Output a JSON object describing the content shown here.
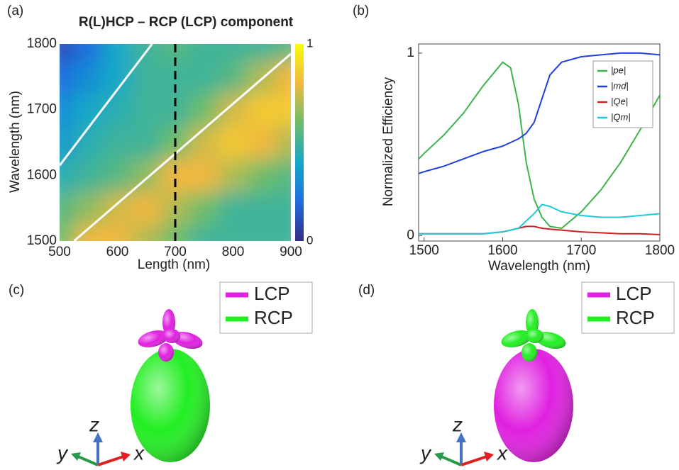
{
  "chart_data": [
    {
      "type": "heatmap",
      "panel": "(a)",
      "title": "R(L)HCP – RCP (LCP) component",
      "x_label": "Length (nm)",
      "y_label": "Wavelength (nm)",
      "x": [
        500,
        550,
        600,
        650,
        700,
        750,
        800,
        850,
        900
      ],
      "y": [
        1500,
        1550,
        1600,
        1650,
        1700,
        1750,
        1800
      ],
      "z": [
        [
          0.6,
          0.8,
          0.8,
          0.7,
          0.6,
          0.5,
          0.5,
          0.5,
          0.5
        ],
        [
          0.55,
          0.65,
          0.75,
          0.8,
          0.7,
          0.6,
          0.5,
          0.5,
          0.5
        ],
        [
          0.45,
          0.5,
          0.55,
          0.65,
          0.8,
          0.8,
          0.7,
          0.6,
          0.55
        ],
        [
          0.35,
          0.45,
          0.5,
          0.5,
          0.6,
          0.75,
          0.85,
          0.8,
          0.7
        ],
        [
          0.3,
          0.4,
          0.45,
          0.5,
          0.5,
          0.6,
          0.75,
          0.85,
          0.85
        ],
        [
          0.2,
          0.3,
          0.4,
          0.5,
          0.5,
          0.5,
          0.55,
          0.7,
          0.8
        ],
        [
          0.1,
          0.2,
          0.4,
          0.5,
          0.55,
          0.5,
          0.5,
          0.5,
          0.55
        ]
      ],
      "xlim": [
        500,
        900
      ],
      "ylim": [
        1500,
        1800
      ],
      "xticks": [
        500,
        600,
        700,
        800,
        900
      ],
      "yticks": [
        1500,
        1600,
        1700,
        1800
      ],
      "colorbar": {
        "lim": [
          0,
          1
        ],
        "ticks": [
          0,
          1
        ]
      },
      "lines": [
        {
          "color": "#ffffff",
          "x": [
            500,
            660
          ],
          "y": [
            1615,
            1800
          ]
        },
        {
          "color": "#ffffff",
          "x": [
            525,
            900
          ],
          "y": [
            1500,
            1785
          ]
        }
      ],
      "vline": {
        "x": 700,
        "color": "#000000"
      }
    },
    {
      "type": "line",
      "panel": "(b)",
      "x_label": "Wavelength (nm)",
      "y_label": "Normalized Efficiency",
      "x": [
        1493,
        1500,
        1525,
        1550,
        1575,
        1600,
        1610,
        1620,
        1630,
        1640,
        1650,
        1660,
        1675,
        1700,
        1725,
        1750,
        1775,
        1800
      ],
      "series": [
        {
          "name": "|pe|",
          "color": "#3cb44b",
          "values": [
            0.42,
            0.45,
            0.55,
            0.67,
            0.82,
            0.95,
            0.92,
            0.72,
            0.4,
            0.2,
            0.1,
            0.05,
            0.04,
            0.13,
            0.25,
            0.4,
            0.58,
            0.77
          ]
        },
        {
          "name": "|md|",
          "color": "#1f3fe0",
          "values": [
            0.34,
            0.35,
            0.38,
            0.42,
            0.46,
            0.49,
            0.51,
            0.53,
            0.56,
            0.62,
            0.75,
            0.88,
            0.95,
            0.98,
            0.99,
            1.0,
            1.0,
            0.99
          ]
        },
        {
          "name": "|Qe|",
          "color": "#d02020",
          "values": [
            0.01,
            0.01,
            0.01,
            0.01,
            0.01,
            0.02,
            0.03,
            0.04,
            0.05,
            0.05,
            0.04,
            0.035,
            0.03,
            0.02,
            0.015,
            0.01,
            0.01,
            0.005
          ]
        },
        {
          "name": "|Qm|",
          "color": "#20c8d8",
          "values": [
            0.01,
            0.01,
            0.01,
            0.01,
            0.01,
            0.02,
            0.03,
            0.04,
            0.08,
            0.12,
            0.17,
            0.16,
            0.13,
            0.11,
            0.1,
            0.1,
            0.11,
            0.12
          ]
        }
      ],
      "xlim": [
        1493,
        1800
      ],
      "ylim": [
        -0.03,
        1.05
      ],
      "xticks": [
        1500,
        1600,
        1700,
        1800
      ],
      "yticks": [
        0,
        1
      ]
    }
  ],
  "figures": [
    {
      "label": "(c)",
      "legend": [
        {
          "name": "LCP",
          "color": "#e020e0"
        },
        {
          "name": "RCP",
          "color": "#22ee22"
        }
      ],
      "axes": [
        "z",
        "y",
        "x"
      ]
    },
    {
      "label": "(d)",
      "legend": [
        {
          "name": "LCP",
          "color": "#e020e0"
        },
        {
          "name": "RCP",
          "color": "#22ee22"
        }
      ],
      "axes": [
        "z",
        "y",
        "x"
      ]
    }
  ]
}
